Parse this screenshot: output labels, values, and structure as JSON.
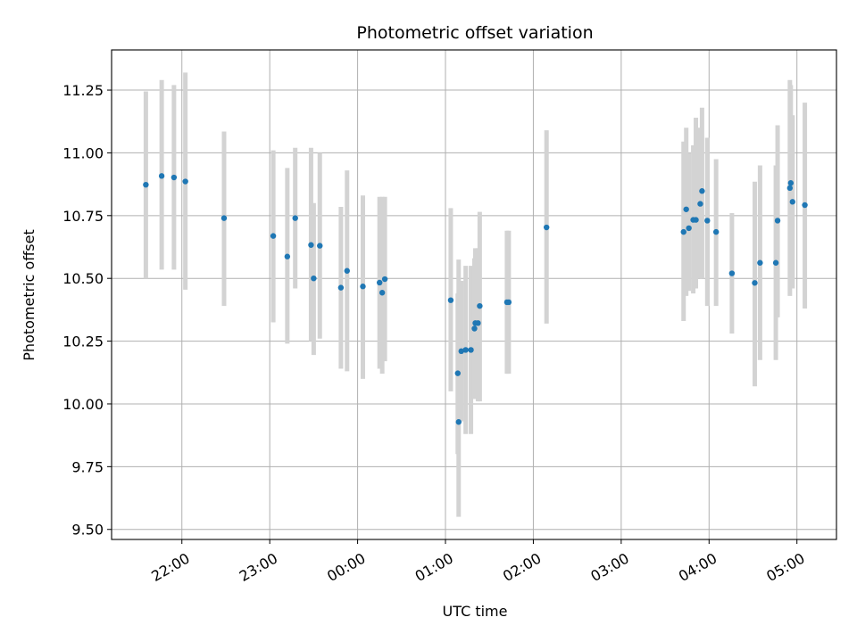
{
  "chart_data": {
    "type": "scatter",
    "title": "Photometric offset variation",
    "xlabel": "UTC time",
    "ylabel": "Photometric offset",
    "x_axis": "time (hours after 00:00 UTC; negative = previous day)",
    "xlim": [
      -2.8,
      5.45
    ],
    "ylim": [
      9.46,
      11.41
    ],
    "xticks": [
      {
        "value": -2,
        "label": "22:00"
      },
      {
        "value": -1,
        "label": "23:00"
      },
      {
        "value": 0,
        "label": "00:00"
      },
      {
        "value": 1,
        "label": "01:00"
      },
      {
        "value": 2,
        "label": "02:00"
      },
      {
        "value": 3,
        "label": "03:00"
      },
      {
        "value": 4,
        "label": "04:00"
      },
      {
        "value": 5,
        "label": "05:00"
      }
    ],
    "yticks": [
      {
        "value": 9.5,
        "label": "9.50"
      },
      {
        "value": 9.75,
        "label": "9.75"
      },
      {
        "value": 10.0,
        "label": "10.00"
      },
      {
        "value": 10.25,
        "label": "10.25"
      },
      {
        "value": 10.5,
        "label": "10.50"
      },
      {
        "value": 10.75,
        "label": "10.75"
      },
      {
        "value": 11.0,
        "label": "11.00"
      },
      {
        "value": 11.25,
        "label": "11.25"
      }
    ],
    "grid": true,
    "point_color": "#1f77b4",
    "errorbar_color": "#d3d3d3",
    "points": [
      {
        "x": -2.41,
        "y": 10.873,
        "lo": 10.5,
        "hi": 11.245
      },
      {
        "x": -2.23,
        "y": 10.908,
        "lo": 10.535,
        "hi": 11.29
      },
      {
        "x": -2.09,
        "y": 10.902,
        "lo": 10.535,
        "hi": 11.27
      },
      {
        "x": -1.96,
        "y": 10.886,
        "lo": 10.455,
        "hi": 11.32
      },
      {
        "x": -1.52,
        "y": 10.74,
        "lo": 10.39,
        "hi": 11.085
      },
      {
        "x": -0.96,
        "y": 10.669,
        "lo": 10.325,
        "hi": 11.01
      },
      {
        "x": -0.8,
        "y": 10.587,
        "lo": 10.24,
        "hi": 10.94
      },
      {
        "x": -0.71,
        "y": 10.74,
        "lo": 10.46,
        "hi": 11.02
      },
      {
        "x": -0.53,
        "y": 10.633,
        "lo": 10.25,
        "hi": 11.02
      },
      {
        "x": -0.5,
        "y": 10.5,
        "lo": 10.195,
        "hi": 10.8
      },
      {
        "x": -0.43,
        "y": 10.63,
        "lo": 10.26,
        "hi": 11.0
      },
      {
        "x": -0.19,
        "y": 10.463,
        "lo": 10.14,
        "hi": 10.785
      },
      {
        "x": -0.12,
        "y": 10.53,
        "lo": 10.13,
        "hi": 10.93
      },
      {
        "x": 0.06,
        "y": 10.468,
        "lo": 10.1,
        "hi": 10.83
      },
      {
        "x": 0.25,
        "y": 10.483,
        "lo": 10.14,
        "hi": 10.825
      },
      {
        "x": 0.28,
        "y": 10.443,
        "lo": 10.12,
        "hi": 10.825
      },
      {
        "x": 0.31,
        "y": 10.497,
        "lo": 10.17,
        "hi": 10.825
      },
      {
        "x": 1.06,
        "y": 10.413,
        "lo": 10.05,
        "hi": 10.78
      },
      {
        "x": 1.14,
        "y": 10.122,
        "lo": 9.8,
        "hi": 10.44
      },
      {
        "x": 1.15,
        "y": 9.928,
        "lo": 9.55,
        "hi": 10.575
      },
      {
        "x": 1.18,
        "y": 10.21,
        "lo": 9.93,
        "hi": 10.49
      },
      {
        "x": 1.23,
        "y": 10.215,
        "lo": 9.88,
        "hi": 10.55
      },
      {
        "x": 1.29,
        "y": 10.215,
        "lo": 9.88,
        "hi": 10.55
      },
      {
        "x": 1.33,
        "y": 10.3,
        "lo": 10.02,
        "hi": 10.58
      },
      {
        "x": 1.34,
        "y": 10.322,
        "lo": 10.02,
        "hi": 10.62
      },
      {
        "x": 1.37,
        "y": 10.322,
        "lo": 10.01,
        "hi": 10.62
      },
      {
        "x": 1.39,
        "y": 10.39,
        "lo": 10.01,
        "hi": 10.765
      },
      {
        "x": 1.7,
        "y": 10.405,
        "lo": 10.12,
        "hi": 10.69
      },
      {
        "x": 1.72,
        "y": 10.405,
        "lo": 10.12,
        "hi": 10.69
      },
      {
        "x": 2.15,
        "y": 10.703,
        "lo": 10.32,
        "hi": 11.09
      },
      {
        "x": 3.71,
        "y": 10.685,
        "lo": 10.33,
        "hi": 11.045
      },
      {
        "x": 3.74,
        "y": 10.775,
        "lo": 10.43,
        "hi": 11.1
      },
      {
        "x": 3.77,
        "y": 10.7,
        "lo": 10.45,
        "hi": 11.0
      },
      {
        "x": 3.82,
        "y": 10.733,
        "lo": 10.44,
        "hi": 11.03
      },
      {
        "x": 3.85,
        "y": 10.733,
        "lo": 10.46,
        "hi": 11.14
      },
      {
        "x": 3.9,
        "y": 10.797,
        "lo": 10.5,
        "hi": 11.1
      },
      {
        "x": 3.92,
        "y": 10.848,
        "lo": 10.5,
        "hi": 11.18
      },
      {
        "x": 3.98,
        "y": 10.73,
        "lo": 10.39,
        "hi": 11.06
      },
      {
        "x": 4.08,
        "y": 10.685,
        "lo": 10.39,
        "hi": 10.975
      },
      {
        "x": 4.26,
        "y": 10.52,
        "lo": 10.28,
        "hi": 10.76
      },
      {
        "x": 4.52,
        "y": 10.482,
        "lo": 10.07,
        "hi": 10.885
      },
      {
        "x": 4.58,
        "y": 10.562,
        "lo": 10.175,
        "hi": 10.95
      },
      {
        "x": 4.76,
        "y": 10.562,
        "lo": 10.175,
        "hi": 10.95
      },
      {
        "x": 4.78,
        "y": 10.73,
        "lo": 10.345,
        "hi": 11.11
      },
      {
        "x": 4.92,
        "y": 10.86,
        "lo": 10.43,
        "hi": 11.29
      },
      {
        "x": 4.93,
        "y": 10.88,
        "lo": 10.5,
        "hi": 11.27
      },
      {
        "x": 4.95,
        "y": 10.805,
        "lo": 10.46,
        "hi": 11.15
      },
      {
        "x": 5.09,
        "y": 10.792,
        "lo": 10.38,
        "hi": 11.2
      }
    ]
  }
}
